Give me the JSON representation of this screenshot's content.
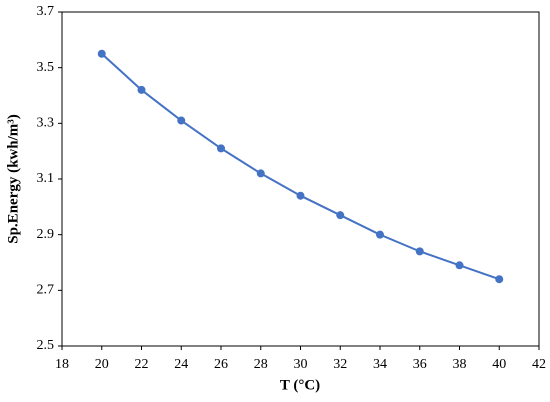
{
  "chart_data": {
    "type": "line",
    "x_label": "T (°C)",
    "y_label": "Sp.Energy (kwh/m³)",
    "x": [
      20,
      22,
      24,
      26,
      28,
      30,
      32,
      34,
      36,
      38,
      40
    ],
    "series": [
      {
        "color": "#4472c4",
        "values": [
          3.55,
          3.42,
          3.31,
          3.21,
          3.12,
          3.04,
          2.97,
          2.9,
          2.84,
          2.79,
          2.74
        ]
      }
    ],
    "xlim": [
      18,
      42
    ],
    "xticks": [
      18,
      20,
      22,
      24,
      26,
      28,
      30,
      32,
      34,
      36,
      38,
      40,
      42
    ],
    "ylim": [
      2.5,
      3.7
    ],
    "yticks": [
      2.5,
      2.7,
      2.9,
      3.1,
      3.3,
      3.5,
      3.7
    ]
  }
}
